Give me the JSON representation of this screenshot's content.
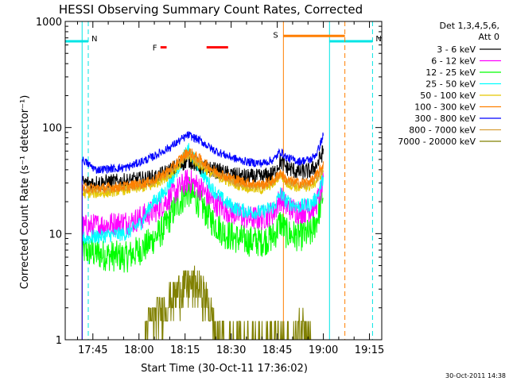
{
  "chart_data": {
    "type": "line",
    "title": "HESSI Observing Summary Count Rates, Corrected",
    "xlabel": "Start Time (30-Oct-11 17:36:02)",
    "ylabel": "Corrected Count Rate (s⁻¹ detector⁻¹)",
    "yscale": "log",
    "ylim": [
      1,
      1000
    ],
    "xlim_minutes_from_start": [
      0,
      103
    ],
    "x_tick_labels": [
      "17:45",
      "18:00",
      "18:15",
      "18:30",
      "18:45",
      "19:00",
      "19:15"
    ],
    "x_tick_minutes": [
      9,
      24,
      39,
      54,
      69,
      84,
      99
    ],
    "y_tick_labels": [
      "1",
      "10",
      "100",
      "1000"
    ],
    "y_tick_values": [
      1,
      10,
      100,
      1000
    ],
    "legend_header": [
      "Det 1,3,4,5,6,",
      "Att 0"
    ],
    "legend_position": "right",
    "timestamp": "30-Oct-2011 14:38",
    "annotations": [
      {
        "label": "N",
        "color": "#00e5e5",
        "x0": 0,
        "x1": 7.5,
        "y": 650,
        "line_start": 5.5,
        "dash_end": 7.5
      },
      {
        "label": "N",
        "color": "#00e5e5",
        "x0": 86,
        "x1": 100,
        "y": 650,
        "line_start": 86,
        "dash_end": 100
      },
      {
        "label": "S",
        "color": "#ff7f00",
        "x0": 71,
        "x1": 91,
        "y": 730,
        "line_start": 71,
        "dash_end": 91
      },
      {
        "label": "F",
        "color": "#ff0000",
        "segments": [
          [
            31,
            33
          ],
          [
            46,
            53
          ]
        ],
        "y": 570
      }
    ],
    "series": [
      {
        "name": "3 - 6 keV",
        "color": "#000000",
        "start": 5.5,
        "keys": [
          [
            5.5,
            30
          ],
          [
            10,
            30
          ],
          [
            20,
            31
          ],
          [
            30,
            34
          ],
          [
            36,
            42
          ],
          [
            40,
            50
          ],
          [
            44,
            43
          ],
          [
            48,
            40
          ],
          [
            52,
            37
          ],
          [
            56,
            35
          ],
          [
            60,
            34
          ],
          [
            64,
            34
          ],
          [
            68,
            37
          ],
          [
            70,
            48
          ],
          [
            72,
            42
          ],
          [
            76,
            38
          ],
          [
            80,
            39
          ],
          [
            82,
            45
          ],
          [
            84,
            60
          ]
        ],
        "noise": 0.08
      },
      {
        "name": "6 - 12 keV",
        "color": "#ff00ff",
        "start": 5.5,
        "keys": [
          [
            5.5,
            11.5
          ],
          [
            12,
            12
          ],
          [
            22,
            13
          ],
          [
            30,
            17
          ],
          [
            36,
            25
          ],
          [
            40,
            32
          ],
          [
            44,
            27
          ],
          [
            48,
            20
          ],
          [
            52,
            17
          ],
          [
            56,
            15
          ],
          [
            60,
            14
          ],
          [
            64,
            14
          ],
          [
            68,
            16
          ],
          [
            70,
            22
          ],
          [
            72,
            18
          ],
          [
            76,
            16
          ],
          [
            80,
            17
          ],
          [
            82,
            20
          ],
          [
            84,
            30
          ]
        ],
        "noise": 0.12
      },
      {
        "name": "12 - 25 keV",
        "color": "#00ff00",
        "start": 5.5,
        "keys": [
          [
            5.5,
            7
          ],
          [
            12,
            6.3
          ],
          [
            20,
            6.0
          ],
          [
            26,
            7.5
          ],
          [
            32,
            11
          ],
          [
            36,
            18
          ],
          [
            40,
            25
          ],
          [
            44,
            19
          ],
          [
            48,
            13
          ],
          [
            52,
            10
          ],
          [
            56,
            9
          ],
          [
            60,
            8.5
          ],
          [
            64,
            8.5
          ],
          [
            68,
            9.5
          ],
          [
            70,
            13
          ],
          [
            72,
            10
          ],
          [
            76,
            9.5
          ],
          [
            80,
            10
          ],
          [
            82,
            14
          ],
          [
            84,
            24
          ]
        ],
        "noise": 0.15
      },
      {
        "name": "25 - 50 keV",
        "color": "#00ffff",
        "start": 5.5,
        "keys": [
          [
            5.5,
            9
          ],
          [
            12,
            9.5
          ],
          [
            20,
            10
          ],
          [
            25,
            13
          ],
          [
            28,
            19
          ],
          [
            32,
            24
          ],
          [
            36,
            38
          ],
          [
            40,
            62
          ],
          [
            44,
            40
          ],
          [
            48,
            26
          ],
          [
            52,
            20
          ],
          [
            56,
            17
          ],
          [
            60,
            16
          ],
          [
            64,
            16
          ],
          [
            68,
            18
          ],
          [
            70,
            24
          ],
          [
            72,
            20
          ],
          [
            76,
            18
          ],
          [
            80,
            19
          ],
          [
            82,
            22
          ],
          [
            84,
            35
          ]
        ],
        "noise": 0.07
      },
      {
        "name": "50 - 100 keV",
        "color": "#e5c800",
        "start": 5.5,
        "keys": [
          [
            5.5,
            24
          ],
          [
            12,
            24
          ],
          [
            20,
            26
          ],
          [
            28,
            28
          ],
          [
            34,
            36
          ],
          [
            40,
            54
          ],
          [
            44,
            44
          ],
          [
            48,
            36
          ],
          [
            52,
            32
          ],
          [
            56,
            29
          ],
          [
            60,
            27
          ],
          [
            64,
            26
          ],
          [
            68,
            30
          ],
          [
            70,
            36
          ],
          [
            72,
            30
          ],
          [
            76,
            27
          ],
          [
            80,
            28
          ],
          [
            82,
            32
          ],
          [
            84,
            40
          ]
        ],
        "noise": 0.05
      },
      {
        "name": "100 - 300 keV",
        "color": "#ff8000",
        "start": 5.5,
        "keys": [
          [
            5.5,
            27
          ],
          [
            12,
            27
          ],
          [
            20,
            28
          ],
          [
            28,
            31
          ],
          [
            34,
            40
          ],
          [
            40,
            60
          ],
          [
            44,
            50
          ],
          [
            48,
            40
          ],
          [
            52,
            35
          ],
          [
            56,
            32
          ],
          [
            60,
            30
          ],
          [
            64,
            29
          ],
          [
            68,
            32
          ],
          [
            70,
            38
          ],
          [
            72,
            32
          ],
          [
            76,
            30
          ],
          [
            80,
            31
          ],
          [
            82,
            36
          ],
          [
            84,
            45
          ]
        ],
        "noise": 0.05
      },
      {
        "name": "300 - 800 keV",
        "color": "#0000ff",
        "start": 5.5,
        "keys": [
          [
            5.5,
            50
          ],
          [
            10,
            40
          ],
          [
            20,
            42
          ],
          [
            28,
            52
          ],
          [
            34,
            65
          ],
          [
            40,
            85
          ],
          [
            44,
            75
          ],
          [
            48,
            62
          ],
          [
            52,
            55
          ],
          [
            56,
            50
          ],
          [
            60,
            47
          ],
          [
            64,
            46
          ],
          [
            68,
            50
          ],
          [
            70,
            60
          ],
          [
            72,
            52
          ],
          [
            76,
            48
          ],
          [
            80,
            50
          ],
          [
            82,
            58
          ],
          [
            84,
            85
          ]
        ],
        "noise": 0.04
      },
      {
        "name": "800 - 7000 keV",
        "color": "#d7a03a",
        "start": 5.5,
        "keys": [
          [
            5.5,
            26
          ],
          [
            12,
            26
          ],
          [
            20,
            27
          ],
          [
            28,
            30
          ],
          [
            34,
            38
          ],
          [
            40,
            56
          ],
          [
            44,
            46
          ],
          [
            48,
            38
          ],
          [
            52,
            33
          ],
          [
            56,
            30
          ],
          [
            60,
            28
          ],
          [
            64,
            28
          ],
          [
            68,
            31
          ],
          [
            70,
            37
          ],
          [
            72,
            31
          ],
          [
            76,
            29
          ],
          [
            80,
            30
          ],
          [
            82,
            34
          ],
          [
            84,
            42
          ]
        ],
        "noise": 0.04
      },
      {
        "name": "7000 - 20000 keV",
        "color": "#808000",
        "start": 26,
        "keys": [
          [
            26,
            1.3
          ],
          [
            30,
            1.8
          ],
          [
            34,
            2.4
          ],
          [
            38,
            3.2
          ],
          [
            42,
            3.4
          ],
          [
            46,
            2.5
          ],
          [
            48,
            1.6
          ],
          [
            50,
            1.0
          ],
          [
            74,
            1.0
          ],
          [
            78,
            1.6
          ],
          [
            80,
            1.0
          ]
        ],
        "noise": 0.2
      }
    ]
  }
}
